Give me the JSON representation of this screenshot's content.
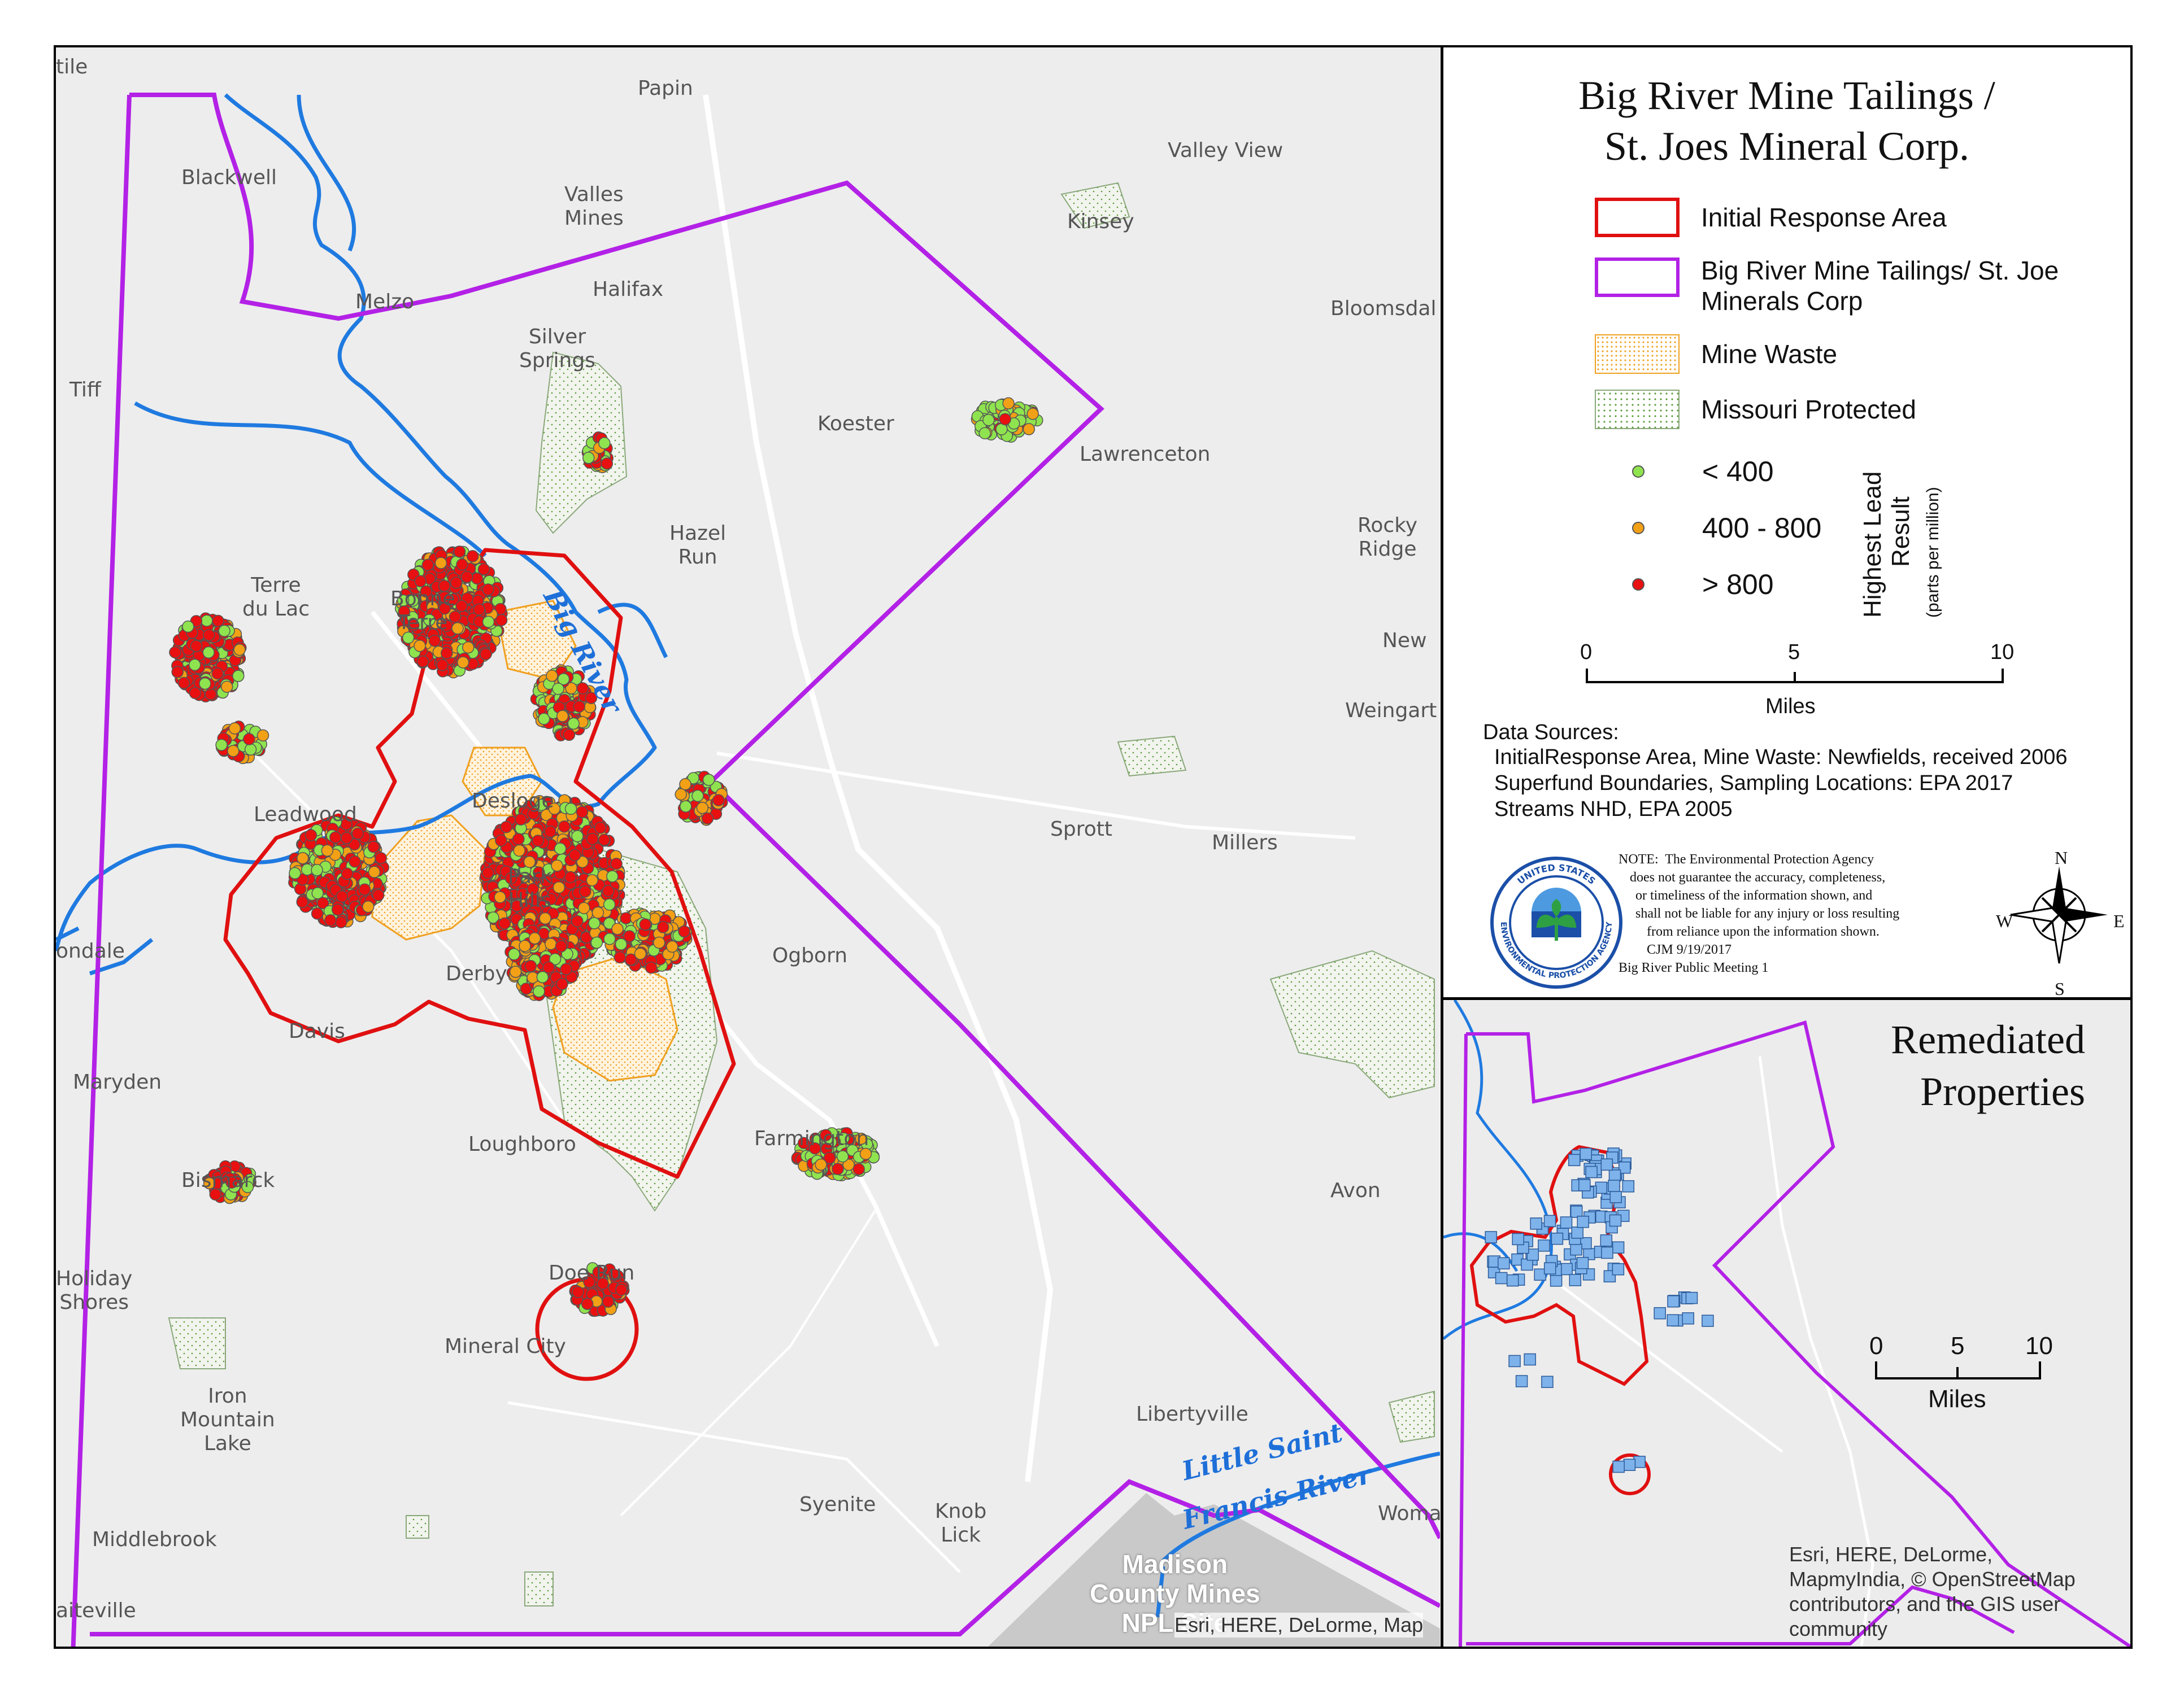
{
  "title": {
    "line1": "Big River Mine Tailings /",
    "line2": "St. Joes Mineral Corp."
  },
  "legend": {
    "items": [
      {
        "label": "Initial Response Area",
        "style": "red-outline",
        "color": "#e01010"
      },
      {
        "label_line1": "Big River Mine Tailings/ St. Joe",
        "label_line2": "Minerals Corp",
        "style": "purple-outline",
        "color": "#b321e6"
      },
      {
        "label": "Mine Waste",
        "style": "orange-stipple",
        "color": "#f0a020"
      },
      {
        "label": "Missouri Protected",
        "style": "green-stipple",
        "color": "#5a9a3a"
      }
    ],
    "lead_classes": [
      {
        "label": "< 400",
        "color": "#8fe34f"
      },
      {
        "label": "400 - 800",
        "color": "#f2a016"
      },
      {
        "label": "> 800",
        "color": "#e81010"
      }
    ],
    "lead_axis_title_line1": "Highest Lead",
    "lead_axis_title_line2": "Result",
    "lead_axis_units": "(parts per million)"
  },
  "scale_bar": {
    "ticks": [
      "0",
      "5",
      "10"
    ],
    "unit": "Miles"
  },
  "inset_scale_bar": {
    "ticks": [
      "0",
      "5",
      "10"
    ],
    "unit": "Miles"
  },
  "data_sources": {
    "heading": "Data Sources:",
    "lines": [
      "InitialResponse Area, Mine Waste: Newfields, received 2006",
      "Superfund Boundaries, Sampling Locations: EPA 2017",
      "Streams NHD, EPA 2005"
    ]
  },
  "note": {
    "lines": [
      "NOTE:  The Environmental Protection Agency",
      "does not guarantee the accuracy, completeness,",
      "or timeliness of the information shown, and",
      "shall not be liable for any injury or loss resulting",
      "from reliance upon the information shown.",
      "CJM 9/19/2017",
      "Big River Public Meeting 1"
    ]
  },
  "epa_seal": {
    "ring_text": "UNITED STATES ENVIRONMENTAL PROTECTION AGENCY"
  },
  "north_arrow": {
    "n": "N",
    "s": "S",
    "e": "E",
    "w": "W"
  },
  "inset": {
    "title_line1": "Remediated",
    "title_line2": "Properties",
    "credit": "Esri, HERE, DeLorme,\nMapmyIndia, © OpenStreetMap\ncontributors, and the GIS user\ncommunity"
  },
  "main_credit": "Esri, HERE, DeLorme, Map",
  "county": "Madison\nCounty Mines\nNPL Site",
  "rivers": {
    "big_river": "Big River",
    "little_saint_line1": "Little Saint",
    "little_saint_line2": "Francis River"
  },
  "places": [
    "Papin",
    "Valley View",
    "Blackwell",
    "Valles\nMines",
    "Kinsey",
    "Melzo",
    "Halifax",
    "Bloomsdal",
    "Silver\nSprings",
    "Tiff",
    "Koester",
    "Lawrenceton",
    "Hazel\nRun",
    "Rocky\nRidge",
    "Terre\ndu Lac",
    "Bonne\nTerre",
    "New",
    "Weingart",
    "Leadwood",
    "Desloge",
    "Park\nHills",
    "Sprott",
    "Millers",
    "Ogborn",
    "ondale",
    "Derby",
    "Davis",
    "Maryden",
    "Farmington",
    "Loughboro",
    "Bismarck",
    "Avon",
    "Doe Run",
    "Holiday\nShores",
    "Mineral City",
    "Iron\nMountain\nLake",
    "Libertyville",
    "Middlebrook",
    "Syenite",
    "Knob\nLick",
    "Woma",
    "aiteville",
    "tile"
  ]
}
